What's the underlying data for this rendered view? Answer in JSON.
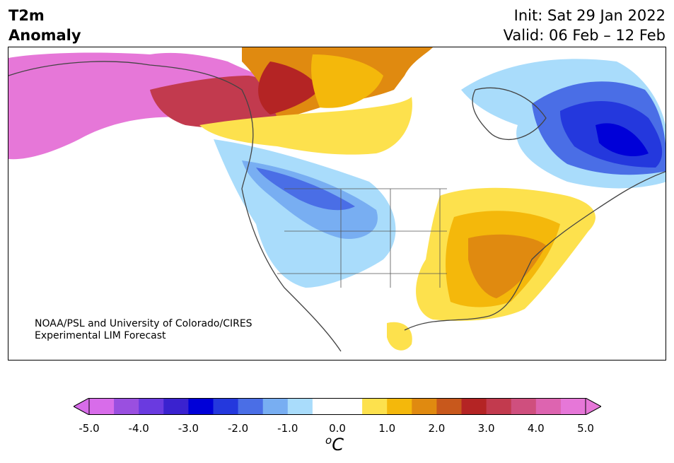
{
  "title": {
    "line1": "T2m",
    "line2": "Anomaly",
    "init": "Init: Sat 29 Jan 2022",
    "valid": "Valid: 06 Feb – 12 Feb"
  },
  "credit": {
    "line1": "NOAA/PSL and University of Colorado/CIRES",
    "line2": "Experimental LIM Forecast"
  },
  "colorbar": {
    "unit_base": "C",
    "unit_sup": "o",
    "ticks": [
      "-5.0",
      "-4.0",
      "-3.0",
      "-2.0",
      "-1.0",
      "0.0",
      "1.0",
      "2.0",
      "3.0",
      "4.0",
      "5.0"
    ],
    "colors": [
      "#d86cea",
      "#9a4fe0",
      "#6a3ae0",
      "#3a22cf",
      "#0000d8",
      "#2438dd",
      "#4a6ee6",
      "#78aef2",
      "#a9dcfb",
      "#ffffff",
      "#ffffff",
      "#fde14d",
      "#f4b80b",
      "#e08a10",
      "#c8581c",
      "#b42424",
      "#c23a4e",
      "#cf4f7e",
      "#dd64b0",
      "#e677d8"
    ],
    "under_color": "#d86cea",
    "over_color": "#e677d8"
  }
}
